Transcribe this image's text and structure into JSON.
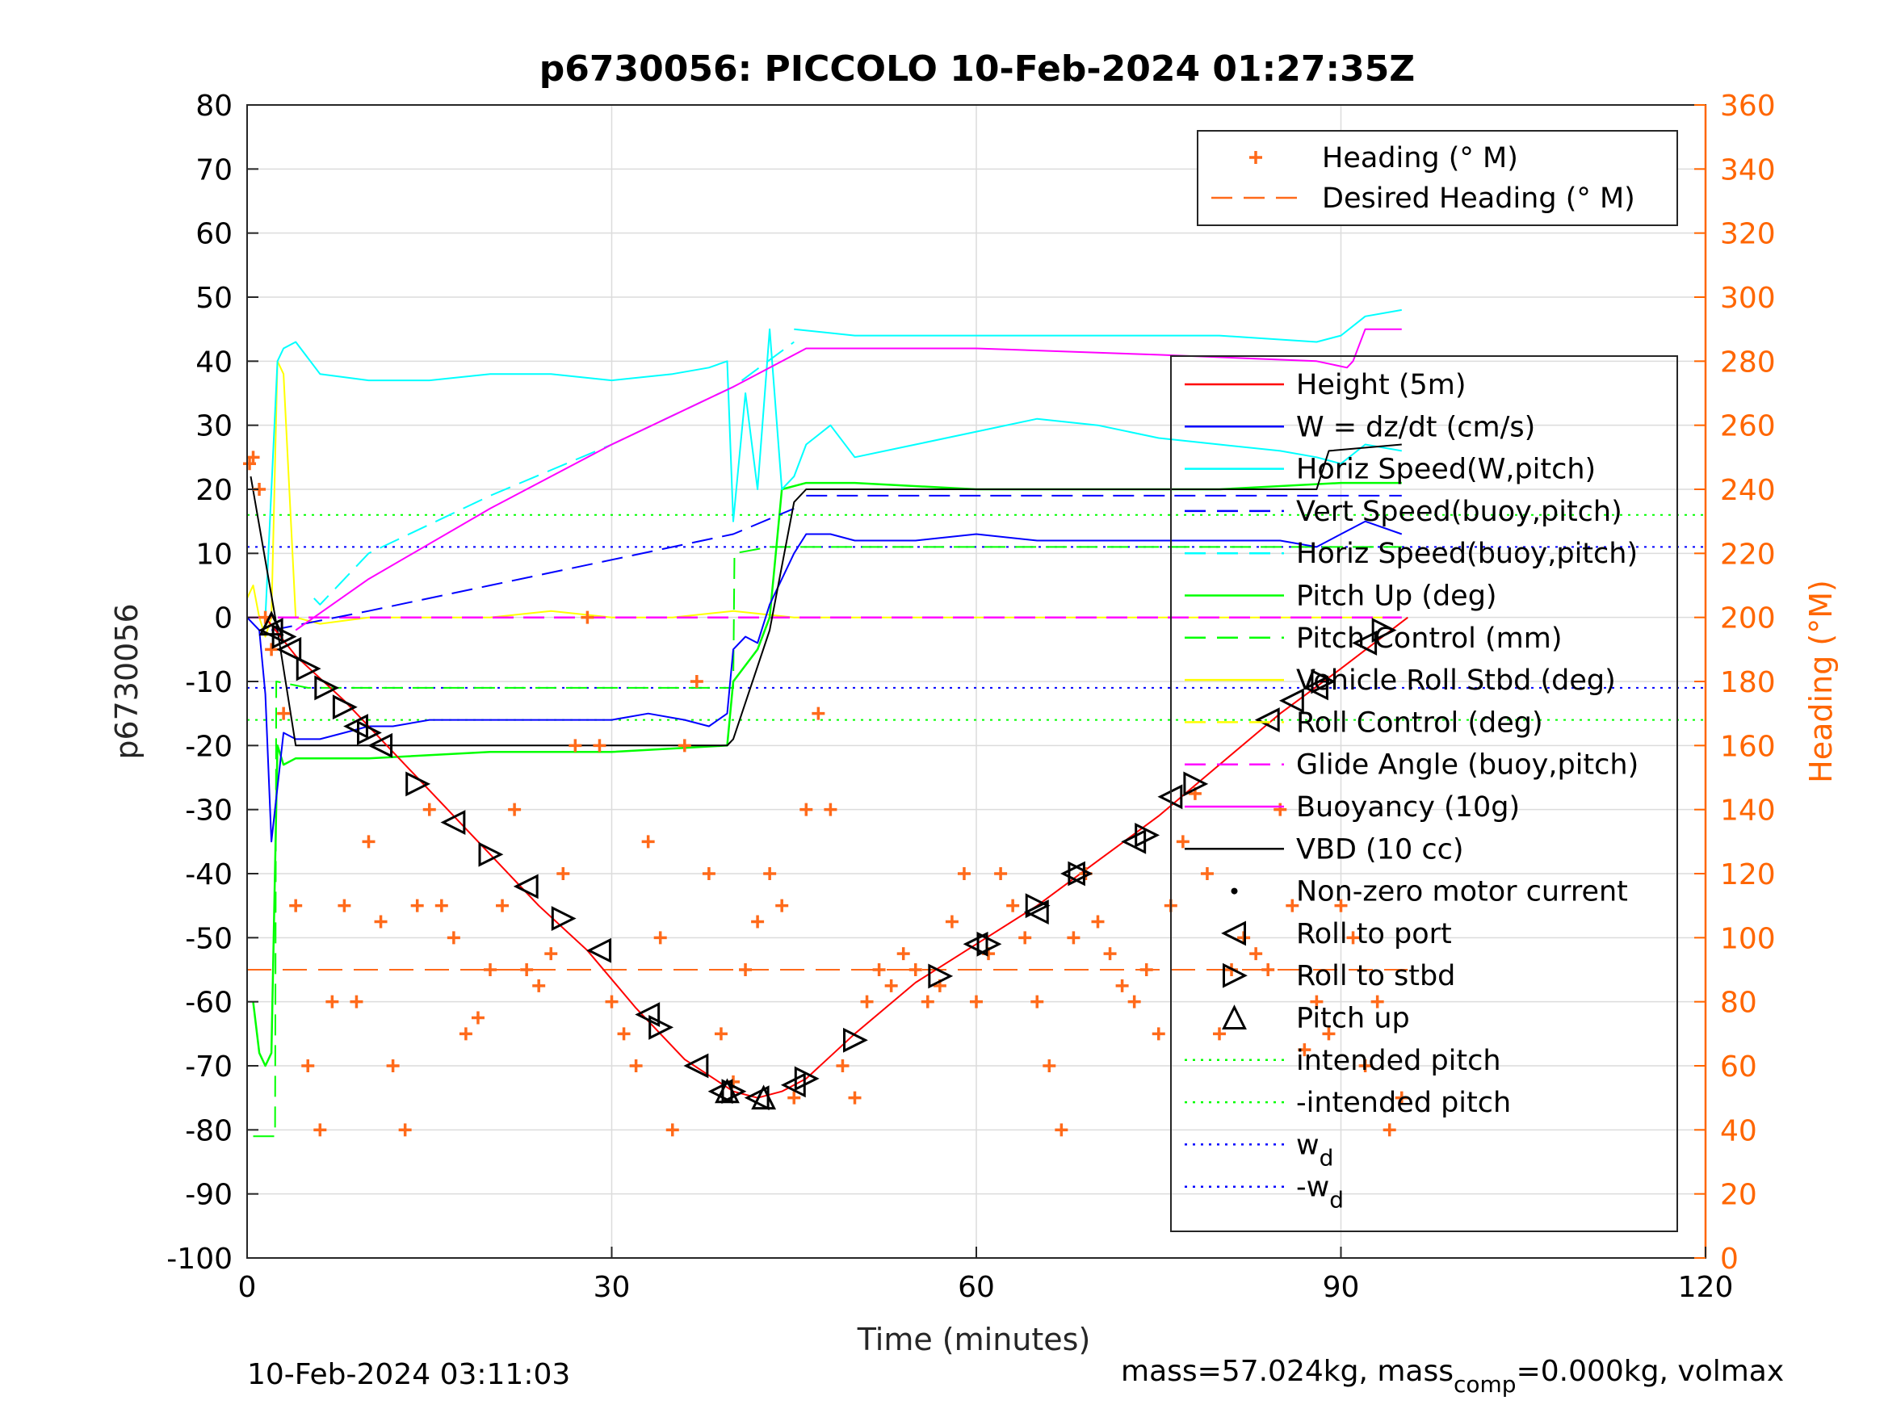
{
  "chart_data": {
    "type": "line",
    "title": "p6730056: PICCOLO 10-Feb-2024 01:27:35Z",
    "xlabel": "Time (minutes)",
    "ylabel": "p6730056",
    "ylabel_right": "Heading (°M)",
    "xlim": [
      0,
      120
    ],
    "ylim": [
      -100,
      80
    ],
    "ylim_right": [
      0,
      360
    ],
    "x_ticks": [
      "0",
      "30",
      "60",
      "90",
      "120"
    ],
    "y_ticks": [
      "80",
      "70",
      "60",
      "50",
      "40",
      "30",
      "20",
      "10",
      "0",
      "-10",
      "-20",
      "-30",
      "-40",
      "-50",
      "-60",
      "-70",
      "-80",
      "-90",
      "-100"
    ],
    "y_ticks_right": [
      "360",
      "340",
      "320",
      "300",
      "280",
      "260",
      "240",
      "220",
      "200",
      "180",
      "160",
      "140",
      "120",
      "100",
      "80",
      "60",
      "40",
      "20",
      "0"
    ],
    "grid": true,
    "footer_left": "10-Feb-2024 03:11:03",
    "footer_right_pre": "mass=57.024kg, mass",
    "footer_right_sub": "comp",
    "footer_right_post": "=0.000kg, volmax",
    "colors": {
      "height": "#ff0000",
      "w": "#0000ff",
      "horiz_speed_w": "#00ffff",
      "vert_speed_buoy": "#0000ff",
      "horiz_speed_buoy": "#00ffff",
      "pitch_up": "#00ff00",
      "pitch_control": "#00ff00",
      "roll": "#ffff00",
      "roll_control": "#ffff00",
      "glide_angle": "#ff00ff",
      "buoyancy": "#ff00ff",
      "vbd": "#000000",
      "heading": "#ff6a1a"
    },
    "legend_heading": [
      {
        "label": "Heading (° M)",
        "style": "plus",
        "color": "#ff6a1a"
      },
      {
        "label": "Desired Heading (° M)",
        "style": "dash",
        "color": "#ff6a1a"
      }
    ],
    "legend_main": [
      {
        "label": "Height (5m)",
        "style": "solid",
        "color": "#ff0000"
      },
      {
        "label": "W = dz/dt (cm/s)",
        "style": "solid",
        "color": "#0000ff"
      },
      {
        "label": "Horiz Speed(W,pitch)",
        "style": "solid",
        "color": "#00ffff"
      },
      {
        "label": "Vert Speed(buoy,pitch)",
        "style": "dash",
        "color": "#0000ff"
      },
      {
        "label": "Horiz Speed(buoy,pitch)",
        "style": "dash",
        "color": "#00ffff"
      },
      {
        "label": "Pitch Up (deg)",
        "style": "solid",
        "color": "#00ff00"
      },
      {
        "label": "Pitch Control (mm)",
        "style": "dash",
        "color": "#00ff00"
      },
      {
        "label": "Vehicle Roll Stbd (deg)",
        "style": "solid",
        "color": "#ffff00"
      },
      {
        "label": "Roll Control (deg)",
        "style": "dash",
        "color": "#ffff00"
      },
      {
        "label": "Glide Angle (buoy,pitch)",
        "style": "dash",
        "color": "#ff00ff"
      },
      {
        "label": "Buoyancy (10g)",
        "style": "solid",
        "color": "#ff00ff"
      },
      {
        "label": "VBD (10 cc)",
        "style": "solid",
        "color": "#000000"
      },
      {
        "label": "Non-zero motor current",
        "style": "dot",
        "color": "#000000"
      },
      {
        "label": "Roll to port",
        "style": "tri-left",
        "color": "#000000"
      },
      {
        "label": "Roll to stbd",
        "style": "tri-right",
        "color": "#000000"
      },
      {
        "label": "Pitch up",
        "style": "tri-up",
        "color": "#000000"
      },
      {
        "label": "intended pitch",
        "style": "dotted",
        "color": "#00ff00"
      },
      {
        "label": "-intended pitch",
        "style": "dotted",
        "color": "#00ff00"
      },
      {
        "label": "w",
        "sub": "d",
        "style": "dotted",
        "color": "#0000ff"
      },
      {
        "label": "-w",
        "sub": "d",
        "style": "dotted",
        "color": "#0000ff"
      }
    ],
    "reference_lines": {
      "intended_pitch": 16,
      "neg_intended_pitch": -16,
      "w_d": 11,
      "neg_w_d": -11,
      "desired_heading": 90
    },
    "series": {
      "height": {
        "x": [
          1.5,
          4,
          8,
          12,
          16,
          20,
          24,
          28,
          32,
          36,
          40,
          42,
          44,
          46,
          50,
          55,
          60,
          65,
          70,
          75,
          80,
          85,
          90,
          95.5
        ],
        "y": [
          0,
          -6,
          -13,
          -21,
          -29,
          -37,
          -45,
          -52,
          -61,
          -69,
          -74,
          -75,
          -74,
          -72,
          -65,
          -57,
          -51,
          -45,
          -38,
          -31,
          -23,
          -15,
          -8,
          0
        ]
      },
      "w": {
        "x": [
          0,
          1,
          1.5,
          2,
          3,
          4,
          6,
          8,
          10,
          12,
          15,
          18,
          21,
          24,
          27,
          30,
          33,
          36,
          38,
          39.5,
          40,
          41,
          42,
          43,
          44,
          45,
          46,
          48,
          50,
          55,
          60,
          65,
          70,
          75,
          80,
          85,
          88,
          90,
          92,
          95
        ],
        "y": [
          0,
          -2,
          -12,
          -35,
          -18,
          -19,
          -19,
          -18,
          -17,
          -17,
          -16,
          -16,
          -16,
          -16,
          -16,
          -16,
          -15,
          -16,
          -17,
          -15,
          -5,
          -3,
          -4,
          2,
          6,
          10,
          13,
          13,
          12,
          12,
          13,
          12,
          12,
          12,
          12,
          12,
          11,
          13,
          15,
          13
        ]
      },
      "vert_speed_buoy": {
        "x": [
          2,
          10,
          20,
          30,
          40,
          45
        ],
        "y": [
          -2,
          1,
          5,
          9,
          13,
          17
        ]
      },
      "vert_speed_buoy_2": {
        "x": [
          46,
          60,
          75,
          90,
          95
        ],
        "y": [
          19,
          19,
          19,
          19,
          19
        ]
      },
      "horiz_speed_w": {
        "x": [
          1.5,
          2.5,
          3,
          4,
          6,
          10,
          15,
          20,
          25,
          30,
          35,
          38,
          39.5,
          40,
          41,
          42,
          43,
          44,
          45,
          46,
          48,
          50,
          55,
          60,
          65,
          70,
          75,
          80,
          85,
          88,
          90,
          92,
          95
        ],
        "y": [
          0,
          40,
          42,
          43,
          38,
          37,
          37,
          38,
          38,
          37,
          38,
          39,
          40,
          15,
          35,
          20,
          45,
          20,
          22,
          27,
          30,
          25,
          27,
          29,
          31,
          30,
          28,
          27,
          26,
          25,
          24,
          27,
          26
        ]
      },
      "horiz_speed_w_top": {
        "x": [
          45,
          50,
          60,
          70,
          80,
          88,
          90,
          92,
          95
        ],
        "y": [
          45,
          44,
          44,
          44,
          44,
          43,
          44,
          47,
          48
        ]
      },
      "horiz_speed_buoy": {
        "x": [
          5.5,
          6,
          10,
          20,
          30,
          40,
          45
        ],
        "y": [
          3,
          2,
          10,
          19,
          27,
          36,
          43
        ]
      },
      "pitch_up": {
        "x": [
          0.5,
          1,
          1.5,
          2,
          2.5,
          3,
          4,
          10,
          20,
          30,
          39.5,
          40,
          42,
          43,
          43.5,
          44,
          46,
          50,
          60,
          70,
          80,
          90,
          95
        ],
        "y": [
          -60,
          -68,
          -70,
          -68,
          -20,
          -23,
          -22,
          -22,
          -21,
          -21,
          -20,
          -10,
          -5,
          0,
          10,
          20,
          21,
          21,
          20,
          20,
          20,
          21,
          21
        ]
      },
      "pitch_control": {
        "x": [
          0.5,
          2.3,
          2.4,
          5,
          40,
          40.1,
          43,
          95
        ],
        "y": [
          -81,
          -81,
          -10,
          -11,
          -11,
          10,
          11,
          11
        ]
      },
      "roll": {
        "x": [
          0,
          0.5,
          1,
          1.5,
          2,
          2.5,
          3,
          4,
          6,
          10,
          14,
          20,
          25,
          30,
          35,
          40,
          45,
          50,
          55,
          60,
          65,
          70,
          75,
          80,
          85,
          90,
          95
        ],
        "y": [
          3,
          5,
          0,
          -3,
          0,
          40,
          38,
          0,
          -1,
          0,
          0,
          0,
          1,
          0,
          0,
          1,
          0,
          0,
          0,
          0,
          0,
          0,
          0,
          0,
          0,
          0,
          0
        ]
      },
      "glide_angle": {
        "x": [
          0,
          20,
          40,
          60,
          80,
          95
        ],
        "y": [
          0,
          0,
          0,
          0,
          0,
          0
        ]
      },
      "buoyancy": {
        "x": [
          4,
          10,
          20,
          30,
          40,
          46,
          60,
          75,
          88,
          90.5,
          91,
          92,
          95
        ],
        "y": [
          -2,
          6,
          17,
          27,
          36,
          42,
          42,
          41,
          40,
          39,
          40,
          45,
          45
        ]
      },
      "vbd": {
        "x": [
          0.3,
          2.5,
          4,
          10,
          20,
          30,
          39.5,
          40,
          43,
          45,
          46,
          50,
          60,
          70,
          80,
          88,
          89,
          95
        ],
        "y": [
          22,
          -2,
          -20,
          -20,
          -20,
          -20,
          -20,
          -19,
          -2,
          18,
          20,
          20,
          20,
          20,
          20,
          20,
          26,
          27
        ]
      },
      "heading": {
        "x": [
          0.2,
          0.5,
          1,
          1.5,
          2,
          3,
          4,
          5,
          6,
          7,
          8,
          9,
          10,
          11,
          12,
          13,
          14,
          15,
          16,
          17,
          18,
          19,
          20,
          21,
          22,
          23,
          24,
          25,
          26,
          27,
          28,
          29,
          30,
          31,
          32,
          33,
          34,
          35,
          36,
          37,
          38,
          39,
          40,
          41,
          42,
          43,
          44,
          45,
          46,
          47,
          48,
          49,
          50,
          51,
          52,
          53,
          54,
          55,
          56,
          57,
          58,
          59,
          60,
          61,
          62,
          63,
          64,
          65,
          66,
          67,
          68,
          69,
          70,
          71,
          72,
          73,
          74,
          75,
          76,
          77,
          78,
          79,
          80,
          81,
          82,
          83,
          84,
          85,
          86,
          87,
          88,
          89,
          90,
          91,
          92,
          93,
          94,
          95
        ],
        "y": [
          248,
          250,
          240,
          200,
          190,
          170,
          110,
          60,
          40,
          80,
          110,
          80,
          130,
          105,
          60,
          40,
          110,
          140,
          110,
          100,
          70,
          75,
          90,
          110,
          140,
          90,
          85,
          95,
          120,
          160,
          200,
          160,
          80,
          70,
          60,
          130,
          100,
          40,
          160,
          180,
          120,
          70,
          55,
          90,
          105,
          120,
          110,
          50,
          140,
          170,
          140,
          60,
          50,
          80,
          90,
          85,
          95,
          90,
          80,
          85,
          105,
          120,
          80,
          95,
          120,
          110,
          100,
          80,
          60,
          40,
          100,
          120,
          105,
          95,
          85,
          80,
          90,
          70,
          110,
          130,
          145,
          120,
          70,
          90,
          100,
          95,
          90,
          140,
          110,
          65,
          80,
          70,
          110,
          100,
          60,
          80,
          40,
          50
        ]
      }
    },
    "markers": {
      "roll_port": {
        "x": [
          2,
          3.5,
          9,
          11,
          17,
          23,
          29,
          33,
          37,
          39,
          42,
          45,
          60,
          65,
          68,
          73,
          76,
          84,
          86,
          88,
          92
        ],
        "y": [
          -2,
          -5,
          -17,
          -20,
          -32,
          -42,
          -52,
          -62,
          -70,
          -74,
          -75,
          -73,
          -51,
          -46,
          -40,
          -35,
          -28,
          -16,
          -13,
          -11,
          -4
        ]
      },
      "roll_stbd": {
        "x": [
          3,
          5,
          6.5,
          8,
          10,
          14,
          20,
          26,
          34,
          40,
          46,
          50,
          57,
          61,
          65,
          68.5,
          74,
          78,
          88.5,
          93.5
        ],
        "y": [
          -3,
          -8,
          -11,
          -14,
          -18,
          -26,
          -37,
          -47,
          -64,
          -74,
          -72,
          -66,
          -56,
          -51,
          -45,
          -40,
          -34,
          -26,
          -10,
          -2
        ]
      },
      "pitch_up": {
        "x": [
          2,
          39.5,
          42.5
        ],
        "y": [
          -1,
          -74,
          -75
        ]
      }
    }
  }
}
